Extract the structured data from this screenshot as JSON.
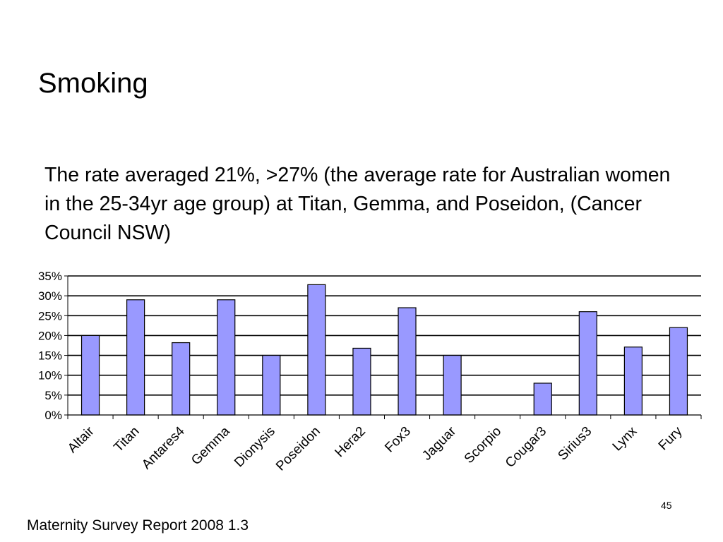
{
  "slide": {
    "title": "Smoking",
    "body": "The rate averaged 21%, >27% (the average rate for Australian women in the 25-34yr age group) at Titan, Gemma, and Poseidon, (Cancer Council NSW)",
    "page_number": "45",
    "footer": "Maternity Survey Report 2008 1.3"
  },
  "chart_data": {
    "type": "bar",
    "categories": [
      "Altair",
      "Titan",
      "Antares4",
      "Gemma",
      "Dionysis",
      "Poseidon",
      "Hera2",
      "Fox3",
      "Jaguar",
      "Scorpio",
      "Cougar3",
      "Sirius3",
      "Lynx",
      "Fury"
    ],
    "values": [
      20,
      29,
      18.2,
      29,
      15,
      32.8,
      16.8,
      27,
      15,
      null,
      8,
      26,
      17.1,
      22
    ],
    "y_unit": "%",
    "ylim": [
      0,
      35
    ],
    "yticks": [
      0,
      5,
      10,
      15,
      20,
      25,
      30,
      35
    ],
    "ytick_labels": [
      "0%",
      "5%",
      "10%",
      "15%",
      "20%",
      "25%",
      "30%",
      "35%"
    ],
    "grid": true,
    "legend": false,
    "bar_color": "#9999ff",
    "bar_edge_color": "#000000"
  }
}
